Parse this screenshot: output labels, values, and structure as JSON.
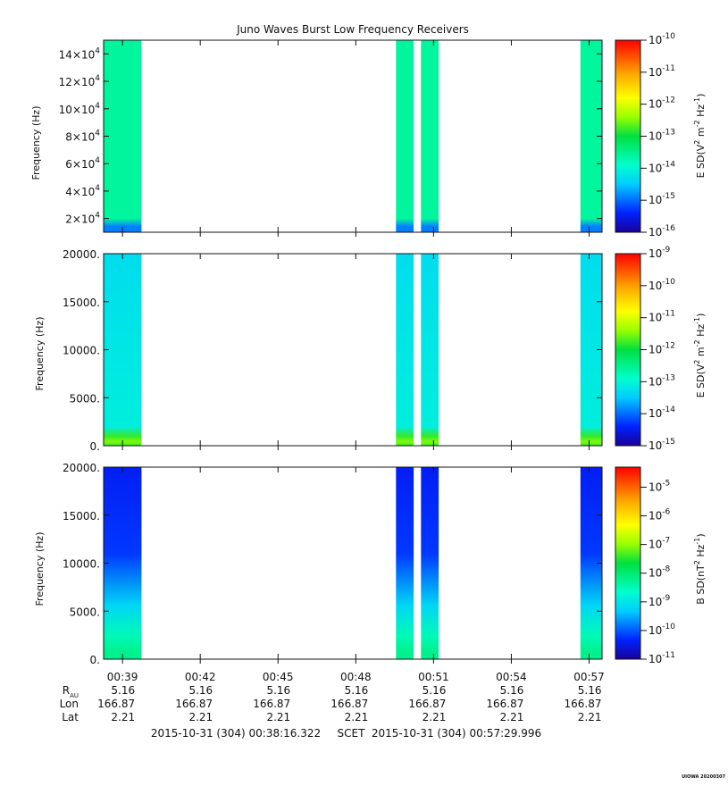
{
  "chart_data": [
    {
      "type": "heatmap",
      "title": "Juno Waves Burst Low Frequency Receivers",
      "ylabel": "Frequency (Hz)",
      "ylim": [
        10000,
        150000
      ],
      "ytick_values": [
        20000,
        40000,
        60000,
        80000,
        100000,
        120000,
        140000
      ],
      "ytick_labels": [
        {
          "mant": "2×10",
          "exp": "4"
        },
        {
          "mant": "4×10",
          "exp": "4"
        },
        {
          "mant": "6×10",
          "exp": "4"
        },
        {
          "mant": "8×10",
          "exp": "4"
        },
        {
          "mant": "10×10",
          "exp": "4"
        },
        {
          "mant": "12×10",
          "exp": "4"
        },
        {
          "mant": "14×10",
          "exp": "4"
        }
      ],
      "colorbar_label_parts": {
        "a": "E SD(V",
        "b": "2",
        "c": " m",
        "d": "-2",
        "e": " Hz",
        "f": "-1",
        "g": ")"
      },
      "colorbar_log_range": [
        -16,
        -10
      ],
      "colorbar_ticks": [
        -16,
        -15,
        -14,
        -13,
        -12,
        -11,
        -10
      ],
      "bursts": [
        {
          "start": "00:38:16",
          "end": "00:39:44",
          "level_log": -13.6,
          "edge_log": -14.9
        },
        {
          "start": "00:49:33",
          "end": "00:50:14",
          "level_log": -13.6,
          "edge_log": -14.9
        },
        {
          "start": "00:50:31",
          "end": "00:51:12",
          "level_log": -13.6,
          "edge_log": -14.9
        },
        {
          "start": "00:56:40",
          "end": "00:57:30",
          "level_log": -13.6,
          "edge_log": -14.9
        }
      ]
    },
    {
      "type": "heatmap",
      "ylabel": "Frequency (Hz)",
      "ylim": [
        0,
        20000
      ],
      "ytick_values": [
        0,
        5000,
        10000,
        15000,
        20000
      ],
      "ytick_labels": [
        "0.",
        "5000.",
        "10000.",
        "15000.",
        "20000."
      ],
      "colorbar_label_parts": {
        "a": "E SD(V",
        "b": "2",
        "c": " m",
        "d": "-2",
        "e": " Hz",
        "f": "-1",
        "g": ")"
      },
      "colorbar_log_range": [
        -15,
        -9
      ],
      "colorbar_ticks": [
        -15,
        -14,
        -13,
        -12,
        -11,
        -10,
        -9
      ],
      "bursts": [
        {
          "start": "00:38:16",
          "end": "00:39:44",
          "level_log": -13.2,
          "low_log": -11.8
        },
        {
          "start": "00:49:33",
          "end": "00:50:14",
          "level_log": -13.2,
          "low_log": -11.8
        },
        {
          "start": "00:50:31",
          "end": "00:51:12",
          "level_log": -13.2,
          "low_log": -11.8
        },
        {
          "start": "00:56:40",
          "end": "00:57:30",
          "level_log": -13.2,
          "low_log": -11.8
        }
      ]
    },
    {
      "type": "heatmap",
      "ylabel": "Frequency (Hz)",
      "ylim": [
        0,
        20000
      ],
      "ytick_values": [
        0,
        5000,
        10000,
        15000,
        20000
      ],
      "ytick_labels": [
        "0.",
        "5000.",
        "10000.",
        "15000.",
        "20000."
      ],
      "colorbar_label_parts": {
        "a": "B SD(nT",
        "b": "2",
        "c": " Hz",
        "d": "-1",
        "e": ")"
      },
      "colorbar_log_range": [
        -11,
        -4.3
      ],
      "colorbar_ticks": [
        -11,
        -10,
        -9,
        -8,
        -7,
        -6,
        -5
      ],
      "bursts": [
        {
          "start": "00:38:16",
          "end": "00:39:44",
          "top_log": -10.4,
          "bottom_log": -8.2
        },
        {
          "start": "00:49:33",
          "end": "00:50:14",
          "top_log": -10.4,
          "bottom_log": -8.2
        },
        {
          "start": "00:50:31",
          "end": "00:51:12",
          "top_log": -10.4,
          "bottom_log": -8.2
        },
        {
          "start": "00:56:40",
          "end": "00:57:30",
          "top_log": -10.4,
          "bottom_log": -8.2
        }
      ]
    }
  ],
  "x_axis": {
    "start": "00:38:16.322",
    "end": "00:57:29.996",
    "tick_labels": [
      "00:39",
      "00:42",
      "00:45",
      "00:48",
      "00:51",
      "00:54",
      "00:57"
    ]
  },
  "ephemeris": {
    "row_labels": [
      {
        "main": "R",
        "sub": "AU"
      },
      {
        "main": "Lon",
        "sub": ""
      },
      {
        "main": "Lat",
        "sub": ""
      }
    ],
    "R": [
      "5.16",
      "5.16",
      "5.16",
      "5.16",
      "5.16",
      "5.16",
      "5.16"
    ],
    "Lon": [
      "166.87",
      "166.87",
      "166.87",
      "166.87",
      "166.87",
      "166.87",
      "166.87"
    ],
    "Lat": [
      "2.21",
      "2.21",
      "2.21",
      "2.21",
      "2.21",
      "2.21",
      "2.21"
    ]
  },
  "footer": {
    "start_time": "2015-10-31 (304) 00:38:16.322",
    "scet": "SCET",
    "end_time": "2015-10-31 (304) 00:57:29.996"
  },
  "stamp": "UIOWA 20200307"
}
